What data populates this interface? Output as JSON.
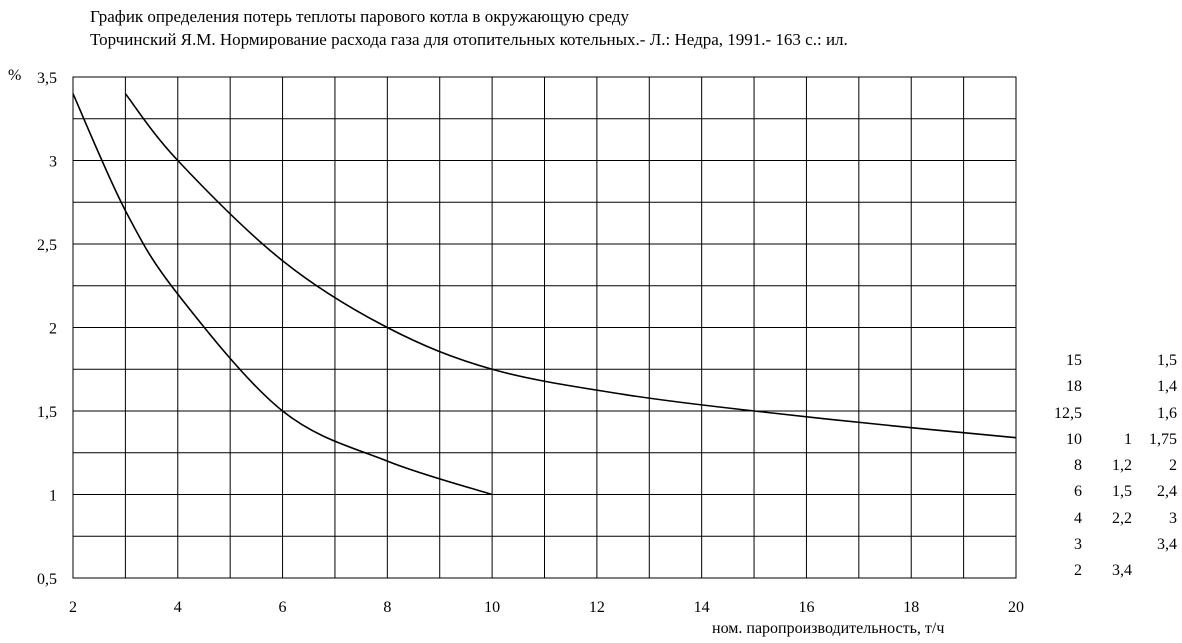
{
  "title_lines": [
    "График определения потерь теплоты парового котла в окружающую среду",
    "Торчинский Я.М. Нормирование расхода газа для отопительных котельных.- Л.: Недра, 1991.- 163 с.: ил."
  ],
  "chart_data": {
    "type": "line",
    "title": "График определения потерь теплоты парового котла в окружающую среду",
    "xlabel": "ном. паропроизводительность, т/ч",
    "ylabel": "%",
    "xlim": [
      2,
      20
    ],
    "ylim": [
      0.5,
      3.5
    ],
    "x_ticks": [
      "2",
      "4",
      "6",
      "8",
      "10",
      "12",
      "14",
      "16",
      "18",
      "20"
    ],
    "y_ticks": [
      "0,5",
      "1",
      "1,5",
      "2",
      "2,5",
      "3",
      "3,5"
    ],
    "grid": true,
    "x_minor_step": 1,
    "y_minor_step": 0.25,
    "series": [
      {
        "x": [
          2,
          3,
          4,
          6,
          8,
          10
        ],
        "y": [
          3.4,
          2.7,
          2.2,
          1.5,
          1.2,
          1.0
        ]
      },
      {
        "x": [
          3,
          4,
          6,
          8,
          10,
          12.5,
          15,
          18,
          20
        ],
        "y": [
          3.4,
          3.0,
          2.4,
          2.0,
          1.75,
          1.6,
          1.5,
          1.4,
          1.34
        ]
      }
    ]
  },
  "side_table": [
    [
      "15",
      "",
      "1,5"
    ],
    [
      "18",
      "",
      "1,4"
    ],
    [
      "12,5",
      "",
      "1,6"
    ],
    [
      "10",
      "1",
      "1,75"
    ],
    [
      "8",
      "1,2",
      "2"
    ],
    [
      "6",
      "1,5",
      "2,4"
    ],
    [
      "4",
      "2,2",
      "3"
    ],
    [
      "3",
      "",
      "3,4"
    ],
    [
      "2",
      "3,4",
      ""
    ]
  ]
}
